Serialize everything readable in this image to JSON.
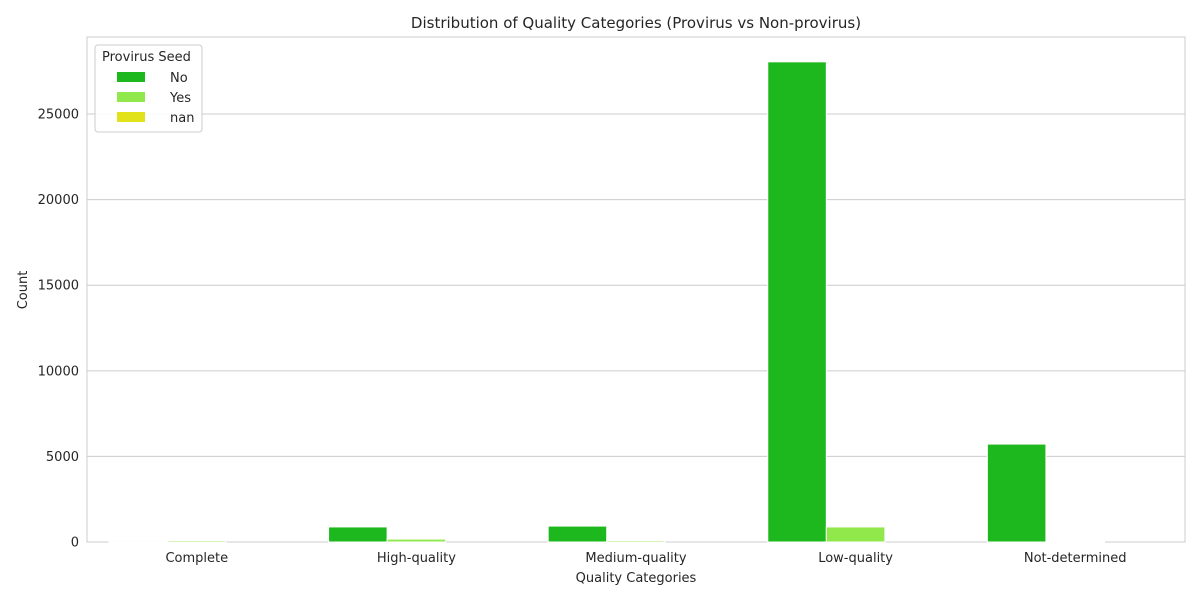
{
  "chart_data": {
    "type": "bar",
    "title": "Distribution of Quality Categories (Provirus vs Non-provirus)",
    "xlabel": "Quality Categories",
    "ylabel": "Count",
    "categories": [
      "Complete",
      "High-quality",
      "Medium-quality",
      "Low-quality",
      "Not-determined"
    ],
    "series": [
      {
        "name": "No",
        "color": "#1db81d",
        "values": [
          60,
          880,
          930,
          28050,
          5720
        ]
      },
      {
        "name": "Yes",
        "color": "#91e84b",
        "values": [
          80,
          170,
          80,
          880,
          20
        ]
      },
      {
        "name": "nan",
        "color": "#e2e21a",
        "values": [
          0,
          0,
          0,
          0,
          0
        ]
      }
    ],
    "ylim": [
      0,
      29500
    ],
    "yticks": [
      0,
      5000,
      10000,
      15000,
      20000,
      25000
    ],
    "grid": true,
    "legend": {
      "title": "Provirus Seed",
      "position": "top-left"
    }
  }
}
